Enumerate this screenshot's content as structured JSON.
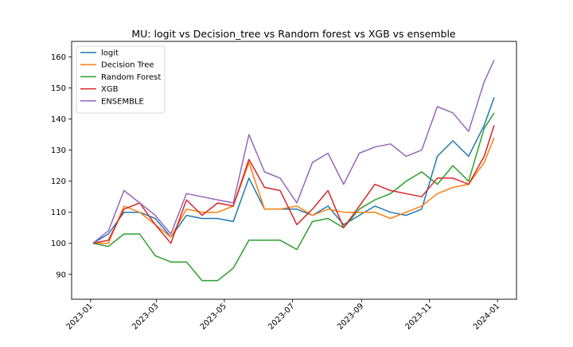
{
  "chart_data": {
    "type": "line",
    "title": "MU: logit vs Decision_tree vs Random forest vs XGB vs ensemble",
    "xlabel": "",
    "ylabel": "",
    "x_range": [
      "2022-12-15",
      "2024-01-18"
    ],
    "ylim": [
      82,
      165
    ],
    "x_ticks": [
      "2023-01",
      "2023-03",
      "2023-05",
      "2023-07",
      "2023-09",
      "2023-11",
      "2024-01"
    ],
    "y_ticks": [
      90,
      100,
      110,
      120,
      130,
      140,
      150,
      160
    ],
    "grid": false,
    "legend_position": "top-left",
    "x": [
      "2023-01-03",
      "2023-01-17",
      "2023-01-31",
      "2023-02-14",
      "2023-02-28",
      "2023-03-14",
      "2023-03-28",
      "2023-04-11",
      "2023-04-25",
      "2023-05-09",
      "2023-05-23",
      "2023-06-06",
      "2023-06-20",
      "2023-07-05",
      "2023-07-19",
      "2023-08-02",
      "2023-08-16",
      "2023-08-30",
      "2023-09-13",
      "2023-09-27",
      "2023-10-11",
      "2023-10-25",
      "2023-11-08",
      "2023-11-22",
      "2023-12-06",
      "2023-12-20",
      "2023-12-29"
    ],
    "series": [
      {
        "name": "logit",
        "color": "#1f77b4",
        "values": [
          100,
          103,
          110,
          110,
          108,
          102,
          109,
          108,
          108,
          107,
          121,
          111,
          111,
          111,
          109,
          112,
          106,
          109,
          112,
          110,
          109,
          111,
          128,
          133,
          128,
          138,
          147
        ]
      },
      {
        "name": "Decision Tree",
        "color": "#ff7f0e",
        "values": [
          100,
          100,
          112,
          110,
          106,
          102,
          111,
          110,
          110,
          112,
          126,
          111,
          111,
          112,
          109,
          111,
          110,
          110,
          110,
          108,
          110,
          112,
          116,
          118,
          119,
          126,
          134
        ]
      },
      {
        "name": "Random Forest",
        "color": "#2ca02c",
        "values": [
          100,
          99,
          103,
          103,
          96,
          94,
          94,
          88,
          88,
          92,
          101,
          101,
          101,
          98,
          107,
          108,
          105,
          111,
          114,
          116,
          120,
          123,
          119,
          125,
          120,
          137,
          142
        ]
      },
      {
        "name": "XGB",
        "color": "#d62728",
        "values": [
          100,
          101,
          111,
          113,
          106,
          100,
          114,
          109,
          113,
          112,
          127,
          118,
          117,
          106,
          111,
          117,
          105,
          112,
          119,
          117,
          116,
          115,
          121,
          121,
          119,
          128,
          138
        ]
      },
      {
        "name": "ENSEMBLE",
        "color": "#9467bd",
        "values": [
          100,
          104,
          117,
          113,
          109,
          103,
          116,
          115,
          114,
          113,
          135,
          123,
          121,
          113,
          126,
          129,
          119,
          129,
          131,
          132,
          128,
          130,
          144,
          142,
          136,
          152,
          159
        ]
      }
    ]
  }
}
